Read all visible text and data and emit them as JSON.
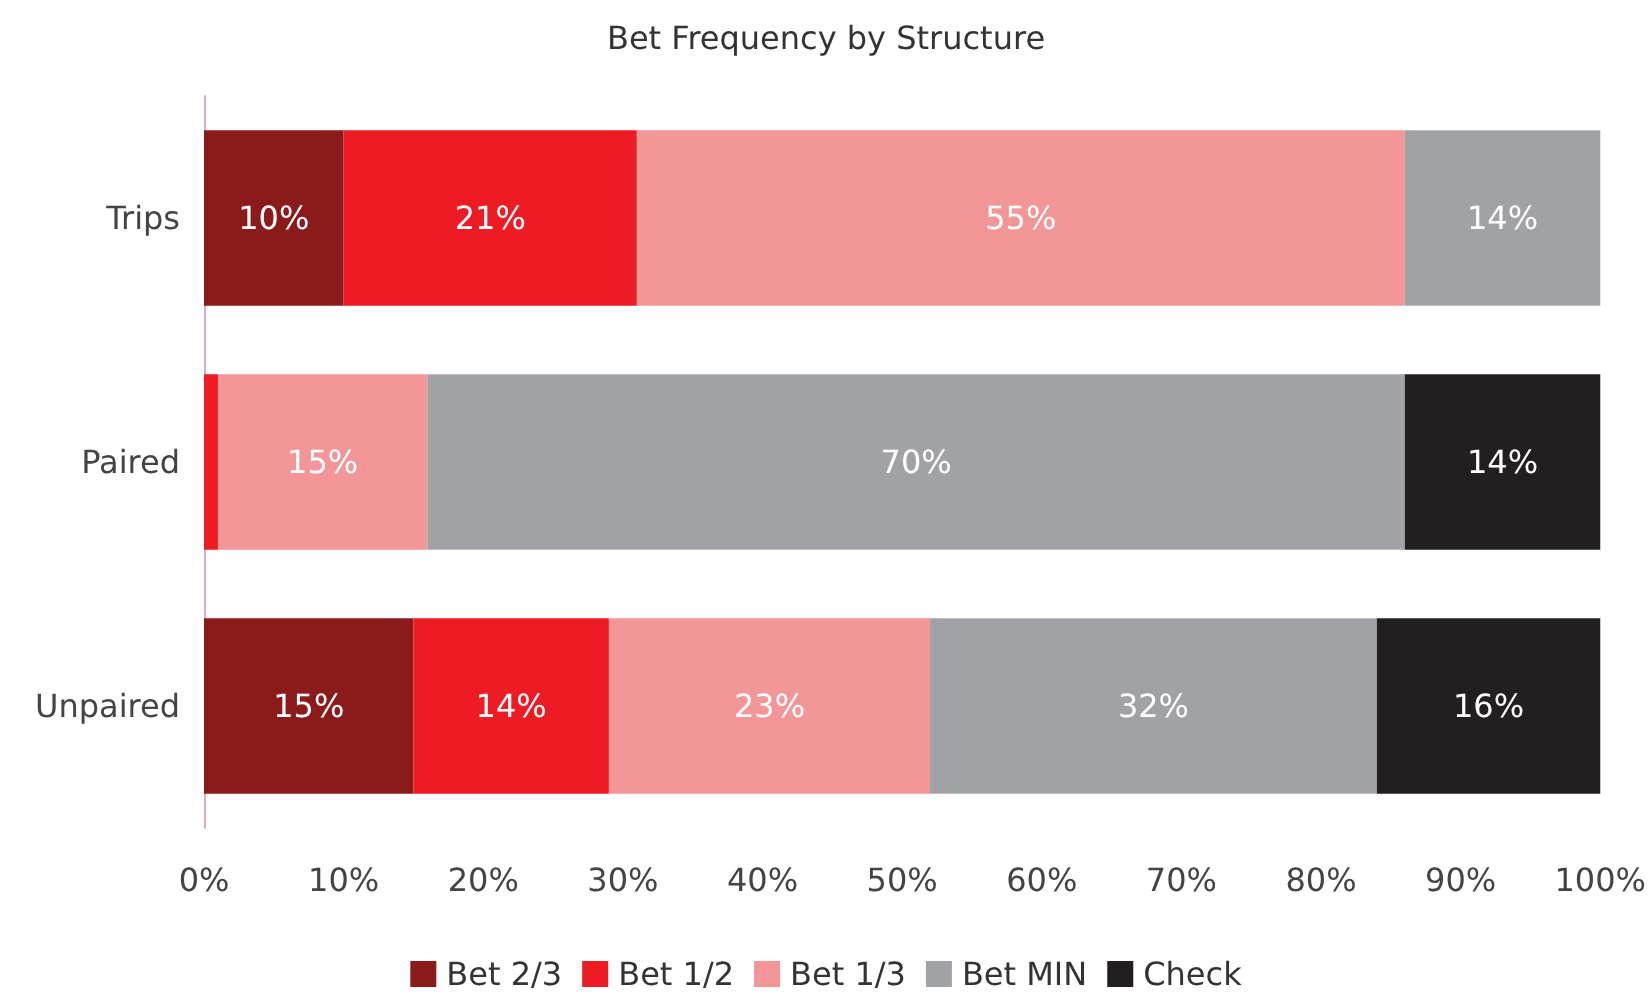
{
  "chart_data": {
    "type": "bar",
    "title": "Bet Frequency by Structure",
    "orientation": "horizontal",
    "stacked": true,
    "categories": [
      "Trips",
      "Paired",
      "Unpaired"
    ],
    "series": [
      {
        "name": "Bet 2/3",
        "color": "#8b1a1a",
        "values": [
          10,
          0,
          15
        ],
        "value_labels": [
          "10%",
          null,
          "15%"
        ]
      },
      {
        "name": "Bet 1/2",
        "color": "#ed1c24",
        "values": [
          21,
          1,
          14
        ],
        "value_labels": [
          "21%",
          null,
          "14%"
        ]
      },
      {
        "name": "Bet 1/3",
        "color": "#f29698",
        "values": [
          55,
          15,
          23
        ],
        "value_labels": [
          "55%",
          "15%",
          "23%"
        ]
      },
      {
        "name": "Bet MIN",
        "color": "#a0a2a5",
        "values": [
          14,
          70,
          32
        ],
        "value_labels": [
          "14%",
          "70%",
          "32%"
        ]
      },
      {
        "name": "Check",
        "color": "#231f20",
        "values": [
          0,
          14,
          16
        ],
        "value_labels": [
          null,
          "14%",
          "16%"
        ]
      }
    ],
    "xlim": [
      0,
      100
    ],
    "xticks": [
      {
        "value": 0,
        "label": "0%"
      },
      {
        "value": 10,
        "label": "10%"
      },
      {
        "value": 20,
        "label": "20%"
      },
      {
        "value": 30,
        "label": "30%"
      },
      {
        "value": 40,
        "label": "40%"
      },
      {
        "value": 50,
        "label": "50%"
      },
      {
        "value": 60,
        "label": "60%"
      },
      {
        "value": 70,
        "label": "70%"
      },
      {
        "value": 80,
        "label": "80%"
      },
      {
        "value": 90,
        "label": "90%"
      },
      {
        "value": 100,
        "label": "100%"
      }
    ],
    "grid": false,
    "legend": "bottom"
  }
}
